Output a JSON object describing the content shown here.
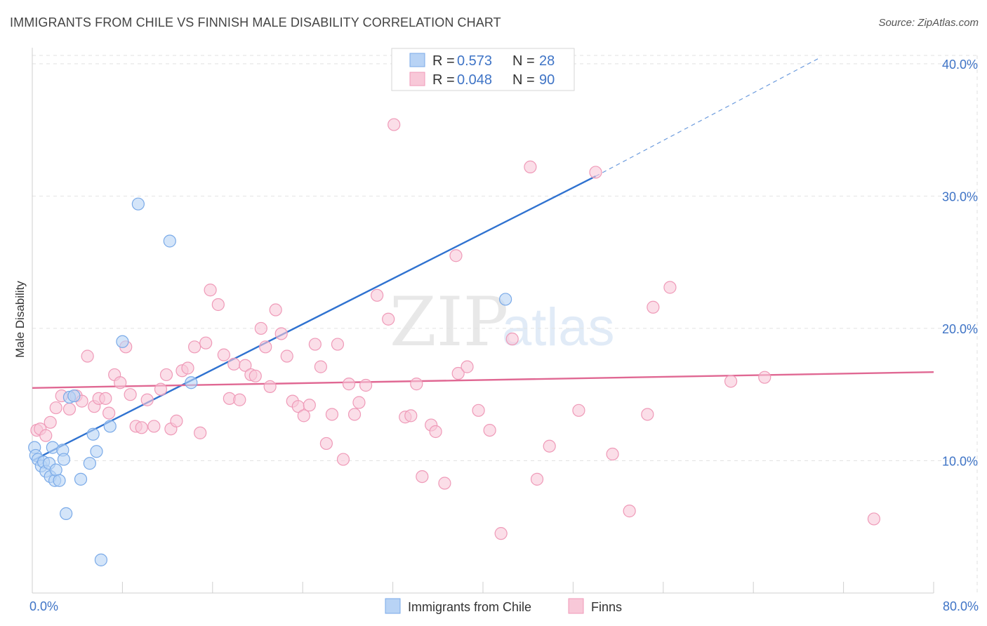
{
  "header": {
    "title": "IMMIGRANTS FROM CHILE VS FINNISH MALE DISABILITY CORRELATION CHART",
    "source": "Source: ZipAtlas.com"
  },
  "watermark": {
    "zip": "ZIP",
    "atlas": "atlas"
  },
  "legend": {
    "rows": [
      {
        "r_label": "R =",
        "r_value": "0.573",
        "n_label": "N =",
        "n_value": "28"
      },
      {
        "r_label": "R =",
        "r_value": "0.048",
        "n_label": "N =",
        "n_value": "90"
      }
    ]
  },
  "bottom_legend": {
    "series1": "Immigrants from Chile",
    "series2": "Finns"
  },
  "chart_data": {
    "type": "scatter",
    "title": "IMMIGRANTS FROM CHILE VS FINNISH MALE DISABILITY CORRELATION CHART",
    "ylabel": "Male Disability",
    "xlim": [
      0,
      80
    ],
    "ylim": [
      0,
      41
    ],
    "x_ticks": [
      {
        "v": 0,
        "label": "0.0%"
      },
      {
        "v": 80,
        "label": "80.0%"
      }
    ],
    "y_ticks": [
      {
        "v": 10,
        "label": "10.0%"
      },
      {
        "v": 20,
        "label": "20.0%"
      },
      {
        "v": 30,
        "label": "30.0%"
      },
      {
        "v": 40,
        "label": "40.0%"
      }
    ],
    "grid": true,
    "series": [
      {
        "name": "Immigrants from Chile",
        "color": "#7aaae8",
        "fill": "#b8d3f5",
        "line_color": "#2f72d0",
        "trend": {
          "x0": 0,
          "y0": 10.0,
          "x1": 50,
          "y1": 31.5,
          "dash_x1": 70,
          "dash_y1": 40.5
        },
        "points": [
          [
            0.2,
            11.0
          ],
          [
            0.3,
            10.4
          ],
          [
            0.5,
            10.1
          ],
          [
            0.8,
            9.6
          ],
          [
            1.0,
            9.9
          ],
          [
            1.2,
            9.2
          ],
          [
            1.5,
            9.8
          ],
          [
            1.6,
            8.8
          ],
          [
            1.8,
            11.0
          ],
          [
            2.0,
            8.5
          ],
          [
            2.1,
            9.3
          ],
          [
            2.4,
            8.5
          ],
          [
            2.7,
            10.8
          ],
          [
            2.8,
            10.1
          ],
          [
            3.0,
            6.0
          ],
          [
            3.3,
            14.8
          ],
          [
            3.7,
            14.9
          ],
          [
            4.3,
            8.6
          ],
          [
            5.1,
            9.8
          ],
          [
            5.4,
            12.0
          ],
          [
            5.7,
            10.7
          ],
          [
            6.1,
            2.5
          ],
          [
            6.9,
            12.6
          ],
          [
            8.0,
            19.0
          ],
          [
            9.4,
            29.4
          ],
          [
            12.2,
            26.6
          ],
          [
            14.1,
            15.9
          ],
          [
            42.0,
            22.2
          ]
        ]
      },
      {
        "name": "Finns",
        "color": "#ef9ab8",
        "fill": "#f8c8d8",
        "line_color": "#e06893",
        "trend": {
          "x0": 0,
          "y0": 15.5,
          "x1": 80,
          "y1": 16.7
        },
        "points": [
          [
            0.4,
            12.3
          ],
          [
            0.7,
            12.4
          ],
          [
            1.2,
            11.9
          ],
          [
            1.6,
            12.9
          ],
          [
            2.1,
            14.0
          ],
          [
            2.6,
            14.9
          ],
          [
            3.3,
            13.9
          ],
          [
            3.9,
            14.9
          ],
          [
            4.4,
            14.5
          ],
          [
            4.9,
            17.9
          ],
          [
            5.5,
            14.1
          ],
          [
            5.9,
            14.7
          ],
          [
            6.5,
            14.7
          ],
          [
            6.8,
            13.6
          ],
          [
            7.3,
            16.5
          ],
          [
            7.8,
            15.9
          ],
          [
            8.3,
            18.6
          ],
          [
            8.7,
            15.0
          ],
          [
            9.2,
            12.6
          ],
          [
            9.7,
            12.5
          ],
          [
            10.2,
            14.6
          ],
          [
            10.8,
            12.6
          ],
          [
            11.4,
            15.4
          ],
          [
            11.9,
            16.5
          ],
          [
            12.3,
            12.4
          ],
          [
            12.8,
            13.0
          ],
          [
            13.3,
            16.8
          ],
          [
            13.8,
            17.0
          ],
          [
            14.4,
            18.6
          ],
          [
            14.9,
            12.1
          ],
          [
            15.4,
            18.9
          ],
          [
            15.8,
            22.9
          ],
          [
            16.5,
            21.8
          ],
          [
            17.0,
            18.0
          ],
          [
            17.5,
            14.7
          ],
          [
            17.9,
            17.3
          ],
          [
            18.4,
            14.6
          ],
          [
            18.9,
            17.2
          ],
          [
            19.4,
            16.5
          ],
          [
            19.8,
            16.4
          ],
          [
            20.3,
            20.0
          ],
          [
            20.7,
            18.6
          ],
          [
            21.1,
            15.6
          ],
          [
            21.6,
            21.4
          ],
          [
            22.1,
            19.6
          ],
          [
            22.6,
            17.9
          ],
          [
            23.1,
            14.5
          ],
          [
            23.6,
            14.1
          ],
          [
            24.1,
            13.4
          ],
          [
            24.6,
            14.2
          ],
          [
            25.1,
            18.8
          ],
          [
            25.6,
            17.1
          ],
          [
            26.1,
            11.3
          ],
          [
            26.6,
            13.5
          ],
          [
            27.1,
            18.8
          ],
          [
            27.6,
            10.1
          ],
          [
            28.1,
            15.8
          ],
          [
            28.6,
            13.5
          ],
          [
            29.0,
            14.4
          ],
          [
            29.6,
            15.7
          ],
          [
            30.6,
            22.5
          ],
          [
            31.6,
            20.7
          ],
          [
            32.1,
            35.4
          ],
          [
            33.1,
            13.3
          ],
          [
            33.6,
            13.4
          ],
          [
            34.1,
            15.8
          ],
          [
            34.6,
            8.8
          ],
          [
            35.4,
            12.7
          ],
          [
            35.8,
            12.2
          ],
          [
            36.6,
            8.3
          ],
          [
            37.6,
            25.5
          ],
          [
            37.8,
            16.6
          ],
          [
            38.6,
            17.1
          ],
          [
            39.6,
            13.8
          ],
          [
            40.6,
            12.3
          ],
          [
            41.6,
            4.5
          ],
          [
            42.6,
            19.2
          ],
          [
            44.2,
            32.2
          ],
          [
            44.8,
            8.6
          ],
          [
            45.9,
            11.1
          ],
          [
            48.5,
            13.8
          ],
          [
            50.0,
            31.8
          ],
          [
            51.5,
            10.5
          ],
          [
            53.0,
            6.2
          ],
          [
            54.6,
            13.5
          ],
          [
            55.1,
            21.6
          ],
          [
            56.6,
            23.1
          ],
          [
            62.0,
            16.0
          ],
          [
            74.7,
            5.6
          ],
          [
            65.0,
            16.3
          ]
        ]
      }
    ]
  }
}
